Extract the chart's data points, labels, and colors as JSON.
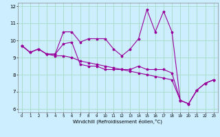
{
  "title": "",
  "xlabel": "Windchill (Refroidissement éolien,°C)",
  "ylabel": "",
  "background_color": "#cceeff",
  "grid_color": "#aaddcc",
  "line_color": "#990099",
  "xlim": [
    -0.5,
    23.5
  ],
  "ylim": [
    5.8,
    12.2
  ],
  "yticks": [
    6,
    7,
    8,
    9,
    10,
    11,
    12
  ],
  "xticks": [
    0,
    1,
    2,
    3,
    4,
    5,
    6,
    7,
    8,
    9,
    10,
    11,
    12,
    13,
    14,
    15,
    16,
    17,
    18,
    19,
    20,
    21,
    22,
    23
  ],
  "series1": [
    9.7,
    9.3,
    9.5,
    9.2,
    9.2,
    10.5,
    10.5,
    9.9,
    10.1,
    10.1,
    10.1,
    9.5,
    9.1,
    9.5,
    10.1,
    11.8,
    10.5,
    11.7,
    10.5,
    6.5,
    6.3,
    7.1,
    7.5,
    7.7
  ],
  "series2": [
    9.7,
    9.3,
    9.5,
    9.2,
    9.2,
    9.8,
    9.9,
    8.6,
    8.5,
    8.5,
    8.3,
    8.3,
    8.3,
    8.3,
    8.5,
    8.3,
    8.3,
    8.3,
    8.1,
    6.5,
    6.3,
    7.1,
    7.5,
    7.7
  ],
  "series3": [
    9.7,
    9.3,
    9.5,
    9.2,
    9.1,
    9.1,
    9.0,
    8.8,
    8.7,
    8.6,
    8.5,
    8.4,
    8.3,
    8.2,
    8.1,
    8.0,
    7.9,
    7.8,
    7.7,
    6.5,
    6.3,
    7.1,
    7.5,
    7.7
  ]
}
